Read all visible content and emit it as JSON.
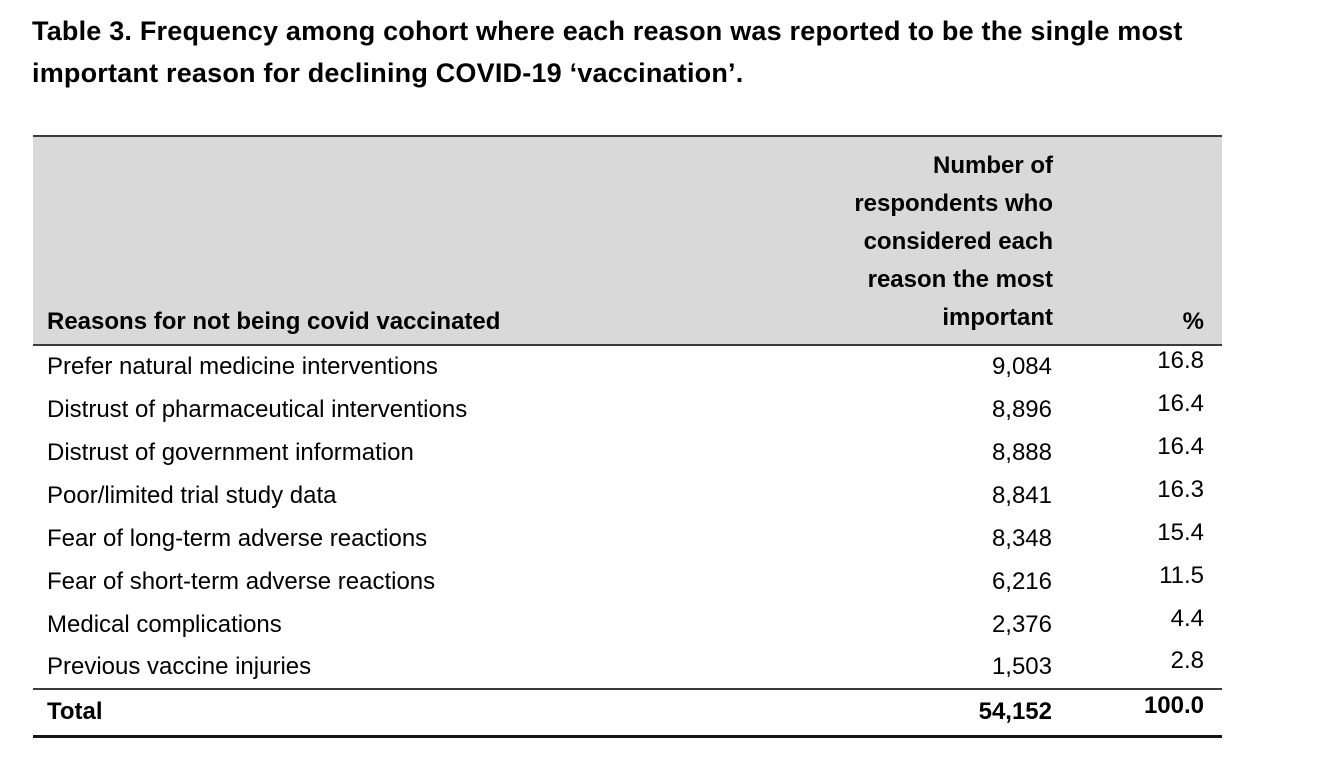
{
  "caption": "Table 3. Frequency among cohort where each reason was reported to be the single most\nimportant reason for declining COVID-19 ‘vaccination’.",
  "table": {
    "header": {
      "reason": "Reasons for not being covid vaccinated",
      "count": "Number of\nrespondents who\nconsidered each\nreason the most\nimportant",
      "percent": "%"
    },
    "rows": [
      {
        "reason": "Prefer natural medicine interventions",
        "count": "9,084",
        "percent": "16.8"
      },
      {
        "reason": "Distrust of pharmaceutical interventions",
        "count": "8,896",
        "percent": "16.4"
      },
      {
        "reason": "Distrust of government information",
        "count": "8,888",
        "percent": "16.4"
      },
      {
        "reason": "Poor/limited trial study data",
        "count": "8,841",
        "percent": "16.3"
      },
      {
        "reason": "Fear of long-term adverse reactions",
        "count": "8,348",
        "percent": "15.4"
      },
      {
        "reason": "Fear of short-term adverse reactions",
        "count": "6,216",
        "percent": "11.5"
      },
      {
        "reason": "Medical complications",
        "count": "2,376",
        "percent": "4.4"
      },
      {
        "reason": "Previous vaccine injuries",
        "count": "1,503",
        "percent": "2.8"
      }
    ],
    "total": {
      "reason": "Total",
      "count": "54,152",
      "percent": "100.0"
    }
  },
  "colors": {
    "header_background": "#d9d9d9",
    "border_dark": "#3c3c3c",
    "border_bottom": "#161616",
    "text": "#000000",
    "page_background": "#ffffff"
  }
}
